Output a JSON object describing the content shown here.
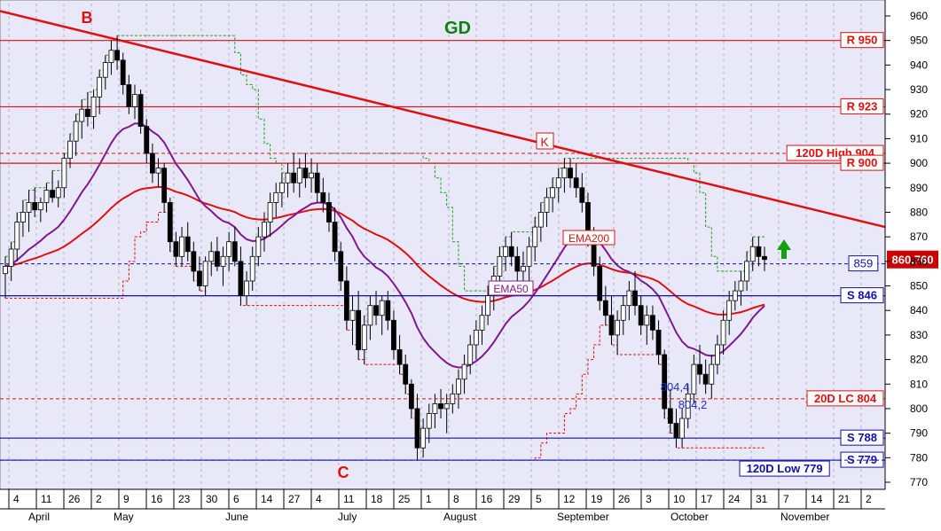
{
  "chart_data": {
    "type": "candlestick",
    "title": "GD",
    "colors": {
      "background": "#e8e8f8",
      "resistance": "#e01010",
      "support": "#1010b0",
      "ema200": "#e01010",
      "ema50": "#801890",
      "trendline": "#e01010",
      "channel_upper": "#20a020",
      "channel_lower": "#e01010",
      "arrow": "#10a010",
      "price_box": "#cc0000"
    },
    "y_axis": {
      "min": 770,
      "max": 960,
      "ticks": [
        770,
        780,
        790,
        800,
        810,
        820,
        830,
        840,
        850,
        860,
        870,
        880,
        890,
        900,
        910,
        920,
        930,
        940,
        950,
        960
      ]
    },
    "x_axis": {
      "day_ticks": [
        "4",
        "11",
        "26",
        "2",
        "9",
        "16",
        "23",
        "30",
        "6",
        "14",
        "27",
        "4",
        "11",
        "18",
        "25",
        "1",
        "8",
        "16",
        "29",
        "5",
        "12",
        "19",
        "26",
        "3",
        "10",
        "17",
        "24",
        "31",
        "7",
        "14",
        "21",
        "2"
      ],
      "month_labels": [
        "April",
        "May",
        "June",
        "July",
        "August",
        "September",
        "October",
        "November"
      ]
    },
    "levels": [
      {
        "label": "R 950",
        "value": 950,
        "kind": "resistance"
      },
      {
        "label": "R 923",
        "value": 923,
        "kind": "resistance"
      },
      {
        "label": "120D High 904",
        "value": 904,
        "kind": "resistance-dashed"
      },
      {
        "label": "R 900",
        "value": 900,
        "kind": "resistance"
      },
      {
        "label": "859",
        "value": 859,
        "kind": "support-dashed"
      },
      {
        "label": "S 846",
        "value": 846,
        "kind": "support"
      },
      {
        "label": "20D LC 804",
        "value": 804,
        "kind": "resistance-dashed"
      },
      {
        "label": "S 788",
        "value": 788,
        "kind": "support"
      },
      {
        "label": "S 779",
        "value": 779,
        "kind": "support"
      },
      {
        "label": "120D Low 779",
        "value": 779,
        "kind": "support-dashed"
      }
    ],
    "last_price": "860.760",
    "annotations": [
      {
        "text": "B",
        "kind": "pivot"
      },
      {
        "text": "K",
        "kind": "pivot-box"
      },
      {
        "text": "C",
        "kind": "pivot"
      },
      {
        "text": "EMA200",
        "kind": "line-label"
      },
      {
        "text": "EMA50",
        "kind": "line-label"
      },
      {
        "text": "804,4",
        "kind": "value-label"
      },
      {
        "text": "804,2",
        "kind": "value-label"
      }
    ],
    "ohlc": [
      [
        855,
        862,
        845,
        858
      ],
      [
        858,
        868,
        852,
        865
      ],
      [
        865,
        880,
        860,
        876
      ],
      [
        876,
        885,
        870,
        880
      ],
      [
        880,
        889,
        872,
        884
      ],
      [
        884,
        890,
        878,
        881
      ],
      [
        881,
        886,
        876,
        884
      ],
      [
        884,
        892,
        880,
        889
      ],
      [
        889,
        897,
        884,
        886
      ],
      [
        886,
        893,
        882,
        890
      ],
      [
        890,
        904,
        886,
        902
      ],
      [
        902,
        912,
        898,
        909
      ],
      [
        909,
        920,
        903,
        917
      ],
      [
        917,
        926,
        910,
        922
      ],
      [
        922,
        929,
        915,
        919
      ],
      [
        919,
        930,
        914,
        927
      ],
      [
        927,
        938,
        920,
        935
      ],
      [
        935,
        944,
        930,
        941
      ],
      [
        941,
        950,
        936,
        946
      ],
      [
        946,
        952,
        938,
        942
      ],
      [
        942,
        945,
        928,
        932
      ],
      [
        932,
        936,
        920,
        923
      ],
      [
        923,
        932,
        918,
        928
      ],
      [
        928,
        930,
        912,
        915
      ],
      [
        915,
        918,
        900,
        904
      ],
      [
        904,
        908,
        892,
        896
      ],
      [
        896,
        902,
        890,
        898
      ],
      [
        898,
        900,
        880,
        884
      ],
      [
        884,
        886,
        864,
        868
      ],
      [
        868,
        872,
        858,
        862
      ],
      [
        862,
        874,
        858,
        870
      ],
      [
        870,
        876,
        860,
        864
      ],
      [
        864,
        868,
        852,
        856
      ],
      [
        856,
        862,
        848,
        850
      ],
      [
        850,
        862,
        846,
        860
      ],
      [
        860,
        868,
        854,
        864
      ],
      [
        864,
        870,
        856,
        858
      ],
      [
        858,
        866,
        850,
        862
      ],
      [
        862,
        872,
        856,
        868
      ],
      [
        868,
        874,
        858,
        860
      ],
      [
        860,
        866,
        842,
        846
      ],
      [
        846,
        856,
        842,
        852
      ],
      [
        852,
        866,
        848,
        862
      ],
      [
        862,
        874,
        858,
        870
      ],
      [
        870,
        880,
        864,
        876
      ],
      [
        876,
        888,
        870,
        884
      ],
      [
        884,
        892,
        878,
        888
      ],
      [
        888,
        896,
        882,
        892
      ],
      [
        892,
        900,
        886,
        896
      ],
      [
        896,
        904,
        888,
        892
      ],
      [
        892,
        902,
        886,
        898
      ],
      [
        898,
        904,
        890,
        894
      ],
      [
        894,
        902,
        888,
        896
      ],
      [
        896,
        900,
        884,
        888
      ],
      [
        888,
        894,
        880,
        884
      ],
      [
        884,
        888,
        872,
        876
      ],
      [
        876,
        882,
        860,
        864
      ],
      [
        864,
        868,
        848,
        852
      ],
      [
        852,
        858,
        832,
        836
      ],
      [
        836,
        846,
        826,
        840
      ],
      [
        840,
        848,
        820,
        824
      ],
      [
        824,
        838,
        818,
        834
      ],
      [
        834,
        846,
        828,
        842
      ],
      [
        842,
        848,
        834,
        838
      ],
      [
        838,
        846,
        830,
        844
      ],
      [
        844,
        848,
        832,
        836
      ],
      [
        836,
        840,
        820,
        824
      ],
      [
        824,
        830,
        814,
        818
      ],
      [
        818,
        822,
        806,
        810
      ],
      [
        810,
        812,
        796,
        800
      ],
      [
        800,
        806,
        779,
        784
      ],
      [
        784,
        796,
        780,
        792
      ],
      [
        792,
        802,
        786,
        798
      ],
      [
        798,
        806,
        792,
        802
      ],
      [
        802,
        808,
        796,
        800
      ],
      [
        800,
        806,
        790,
        802
      ],
      [
        802,
        810,
        798,
        806
      ],
      [
        806,
        816,
        800,
        812
      ],
      [
        812,
        822,
        806,
        818
      ],
      [
        818,
        830,
        814,
        826
      ],
      [
        826,
        836,
        820,
        832
      ],
      [
        832,
        842,
        826,
        838
      ],
      [
        838,
        850,
        834,
        846
      ],
      [
        846,
        858,
        840,
        854
      ],
      [
        854,
        866,
        848,
        862
      ],
      [
        862,
        870,
        856,
        866
      ],
      [
        866,
        872,
        858,
        862
      ],
      [
        862,
        866,
        852,
        856
      ],
      [
        856,
        864,
        850,
        858
      ],
      [
        858,
        870,
        852,
        866
      ],
      [
        866,
        878,
        860,
        874
      ],
      [
        874,
        884,
        868,
        880
      ],
      [
        880,
        890,
        874,
        886
      ],
      [
        886,
        894,
        880,
        890
      ],
      [
        890,
        898,
        884,
        894
      ],
      [
        894,
        902,
        888,
        898
      ],
      [
        898,
        902,
        890,
        894
      ],
      [
        894,
        900,
        886,
        890
      ],
      [
        890,
        896,
        880,
        884
      ],
      [
        884,
        888,
        866,
        870
      ],
      [
        870,
        874,
        854,
        858
      ],
      [
        858,
        862,
        840,
        844
      ],
      [
        844,
        850,
        834,
        838
      ],
      [
        838,
        846,
        826,
        830
      ],
      [
        830,
        840,
        822,
        836
      ],
      [
        836,
        846,
        830,
        842
      ],
      [
        842,
        852,
        836,
        848
      ],
      [
        848,
        856,
        838,
        842
      ],
      [
        842,
        846,
        830,
        834
      ],
      [
        834,
        842,
        826,
        838
      ],
      [
        838,
        842,
        828,
        832
      ],
      [
        832,
        836,
        818,
        822
      ],
      [
        822,
        824,
        796,
        800
      ],
      [
        800,
        808,
        790,
        794
      ],
      [
        794,
        800,
        784,
        788
      ],
      [
        788,
        800,
        784,
        796
      ],
      [
        796,
        810,
        792,
        806
      ],
      [
        806,
        822,
        802,
        818
      ],
      [
        818,
        826,
        810,
        814
      ],
      [
        814,
        820,
        806,
        810
      ],
      [
        810,
        822,
        804,
        818
      ],
      [
        818,
        830,
        814,
        826
      ],
      [
        826,
        840,
        822,
        836
      ],
      [
        836,
        848,
        830,
        844
      ],
      [
        844,
        852,
        840,
        848
      ],
      [
        848,
        856,
        842,
        852
      ],
      [
        852,
        864,
        848,
        860
      ],
      [
        860,
        870,
        856,
        866
      ],
      [
        866,
        870,
        858,
        862
      ],
      [
        862,
        866,
        856,
        860.76
      ]
    ]
  }
}
